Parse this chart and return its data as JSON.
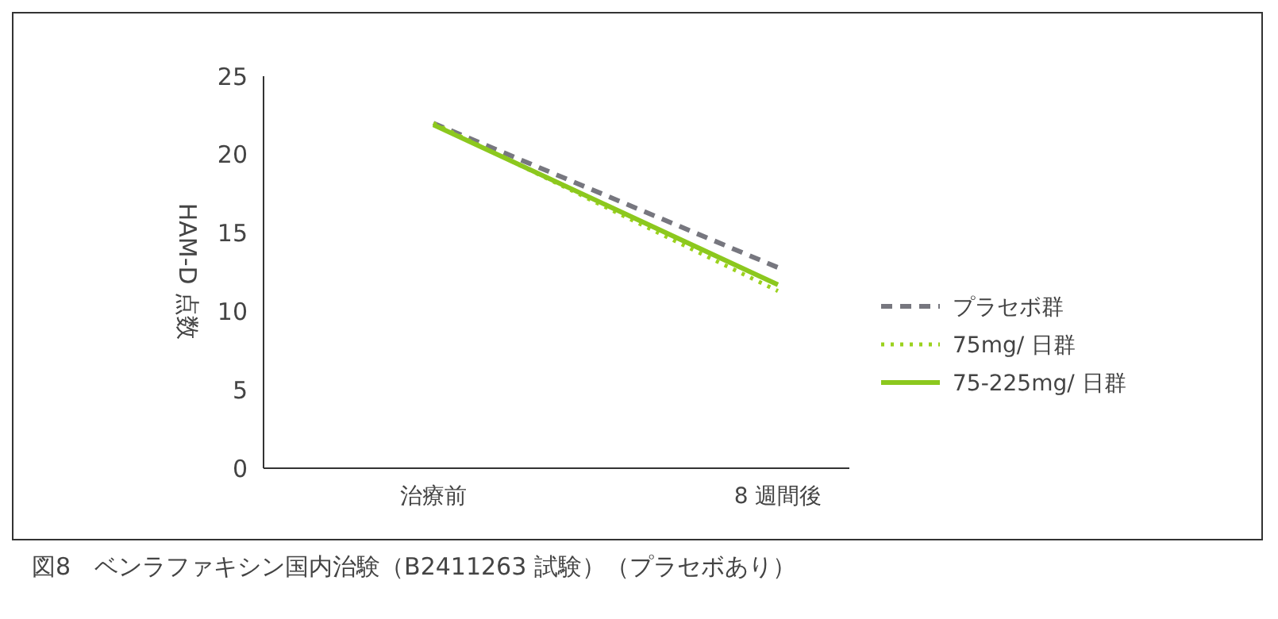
{
  "chart_data": {
    "type": "line",
    "title": "図8　ベンラファキシン国内治験（B2411263 試験）（プラセボあり）",
    "ylabel": "HAM-D 点数",
    "categories": [
      "治療前",
      "8 週間後"
    ],
    "series": [
      {
        "name": "プラセボ群",
        "color": "#77777f",
        "values": [
          22,
          12.8
        ],
        "line_style": "dashed"
      },
      {
        "name": "75mg/ 日群",
        "color": "#9bd21e",
        "values": [
          22,
          11.3
        ],
        "line_style": "dotted"
      },
      {
        "name": "75-225mg/ 日群",
        "color": "#8cc81e",
        "values": [
          21.9,
          11.7
        ],
        "line_style": "solid"
      }
    ],
    "ylim": [
      0,
      25
    ],
    "yticks": [
      0,
      5,
      10,
      15,
      20,
      25
    ],
    "grid": false,
    "legend": "right",
    "marker": "none"
  }
}
